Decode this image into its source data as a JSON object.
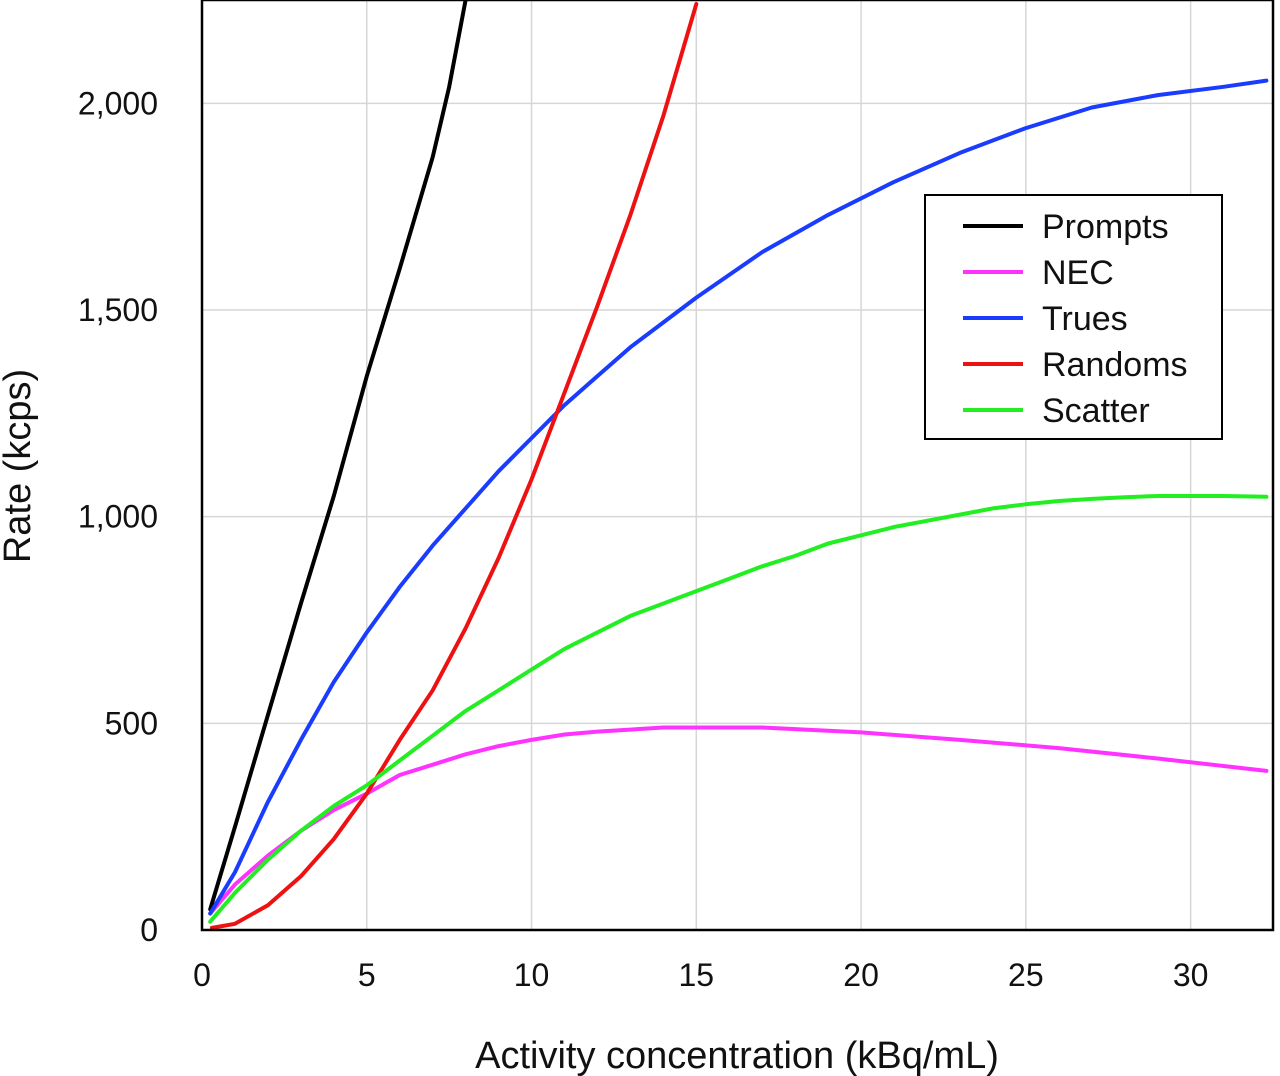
{
  "chart_data": {
    "type": "line",
    "title": "",
    "xlabel": "Activity concentration (kBq/mL)",
    "ylabel": "Rate (kcps)",
    "xlim": [
      0,
      32.5
    ],
    "ylim": [
      0,
      2250
    ],
    "x_ticks": [
      0,
      5,
      10,
      15,
      20,
      25,
      30
    ],
    "x_tick_labels": [
      "0",
      "5",
      "10",
      "15",
      "20",
      "25",
      "30"
    ],
    "y_ticks": [
      0,
      500,
      1000,
      1500,
      2000
    ],
    "y_tick_labels": [
      "0",
      "500",
      "1,000",
      "1,500",
      "2,000"
    ],
    "grid": true,
    "legend_position": "top-right",
    "series": [
      {
        "name": "Prompts",
        "color": "#000000",
        "x": [
          0.25,
          1,
          2,
          3,
          4,
          5,
          6,
          7,
          7.5,
          8.0
        ],
        "y": [
          50,
          250,
          520,
          790,
          1050,
          1340,
          1600,
          1870,
          2040,
          2250
        ]
      },
      {
        "name": "NEC",
        "color": "#ff33ff",
        "x": [
          0.25,
          1,
          2,
          3,
          4,
          5,
          6,
          7,
          8,
          9,
          10,
          11,
          12,
          14,
          17,
          20,
          23,
          26,
          29,
          32.3
        ],
        "y": [
          40,
          110,
          180,
          240,
          290,
          330,
          375,
          400,
          425,
          445,
          460,
          473,
          480,
          490,
          490,
          478,
          460,
          440,
          415,
          385
        ]
      },
      {
        "name": "Trues",
        "color": "#1a3cff",
        "x": [
          0.25,
          1,
          2,
          3,
          4,
          5,
          6,
          7,
          8,
          9,
          10,
          11,
          12,
          13,
          14,
          15,
          17,
          19,
          21,
          23,
          25,
          27,
          29,
          31,
          32.3
        ],
        "y": [
          40,
          140,
          310,
          460,
          600,
          720,
          830,
          930,
          1020,
          1110,
          1190,
          1270,
          1340,
          1410,
          1470,
          1530,
          1640,
          1730,
          1810,
          1880,
          1940,
          1990,
          2020,
          2040,
          2055
        ]
      },
      {
        "name": "Randoms",
        "color": "#ee1111",
        "x": [
          0.3,
          1,
          2,
          3,
          4,
          5,
          6,
          7,
          8,
          9,
          10,
          11,
          12,
          13,
          14,
          15.0
        ],
        "y": [
          5,
          15,
          60,
          130,
          220,
          330,
          460,
          580,
          730,
          900,
          1090,
          1300,
          1510,
          1730,
          1970,
          2240
        ]
      },
      {
        "name": "Scatter",
        "color": "#22ee22",
        "x": [
          0.25,
          1,
          2,
          3,
          4,
          5,
          6,
          7,
          8,
          9,
          10,
          11,
          12,
          13,
          14,
          15,
          16,
          17,
          18,
          19,
          20,
          21,
          22,
          23,
          24,
          25,
          26,
          27,
          28,
          29,
          30,
          31,
          32.3
        ],
        "y": [
          20,
          90,
          170,
          240,
          300,
          350,
          410,
          470,
          530,
          580,
          630,
          680,
          720,
          760,
          790,
          820,
          850,
          880,
          905,
          935,
          955,
          975,
          990,
          1005,
          1020,
          1030,
          1038,
          1043,
          1047,
          1050,
          1050,
          1050,
          1048
        ]
      }
    ]
  }
}
